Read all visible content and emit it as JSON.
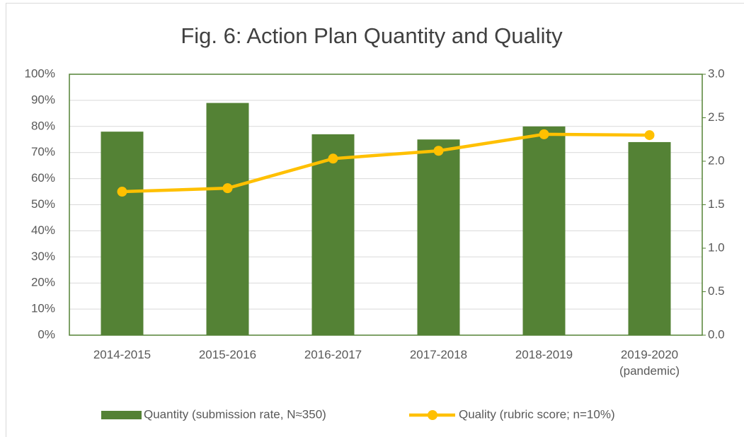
{
  "chart_data": {
    "type": "bar",
    "title": "Fig. 6: Action Plan Quantity and Quality",
    "categories": [
      "2014-2015",
      "2015-2016",
      "2016-2017",
      "2017-2018",
      "2018-2019",
      "2019-2020\n(pandemic)"
    ],
    "series": [
      {
        "name": "Quantity (submission rate, N≈350)",
        "type": "bar",
        "color": "#548235",
        "values": [
          78,
          89,
          77,
          75,
          80,
          74
        ]
      },
      {
        "name": "Quality (rubric score; n=10%)",
        "type": "line",
        "axis": "y2",
        "color": "#FFC000",
        "values": [
          1.65,
          1.69,
          2.03,
          2.12,
          2.31,
          2.3
        ]
      }
    ],
    "ylim": [
      0,
      100
    ],
    "yticks": [
      {
        "value": 0,
        "label": "0%"
      },
      {
        "value": 10,
        "label": "10%"
      },
      {
        "value": 20,
        "label": "20%"
      },
      {
        "value": 30,
        "label": "30%"
      },
      {
        "value": 40,
        "label": "40%"
      },
      {
        "value": 50,
        "label": "50%"
      },
      {
        "value": 60,
        "label": "60%"
      },
      {
        "value": 70,
        "label": "70%"
      },
      {
        "value": 80,
        "label": "80%"
      },
      {
        "value": 90,
        "label": "90%"
      },
      {
        "value": 100,
        "label": "100%"
      }
    ],
    "y2lim": [
      0,
      3
    ],
    "y2ticks": [
      {
        "value": 0,
        "label": "0.0"
      },
      {
        "value": 0.5,
        "label": "0.5"
      },
      {
        "value": 1,
        "label": "1.0"
      },
      {
        "value": 1.5,
        "label": "1.5"
      },
      {
        "value": 2,
        "label": "2.0"
      },
      {
        "value": 2.5,
        "label": "2.5"
      },
      {
        "value": 3,
        "label": "3.0"
      }
    ],
    "grid": true,
    "legend": "bottom"
  }
}
